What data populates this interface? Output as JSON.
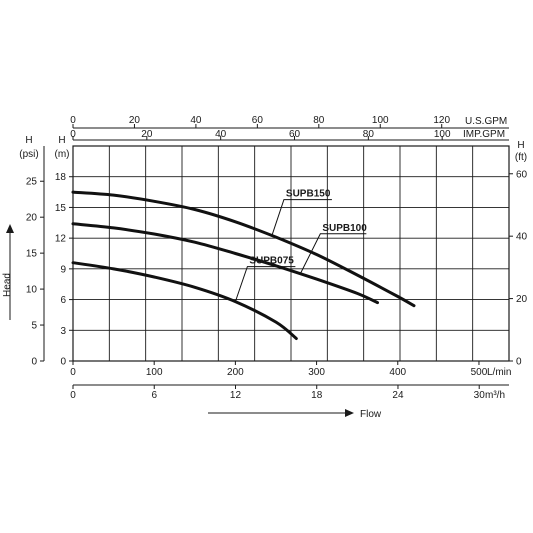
{
  "chart_data": {
    "type": "line",
    "grid": true,
    "axes": {
      "flow_lmin": {
        "unit": "L/min",
        "ticks": [
          0,
          100,
          200,
          300,
          400,
          500
        ],
        "range": [
          0,
          537
        ]
      },
      "flow_m3h": {
        "unit": "m³/h",
        "ticks": [
          0,
          6,
          12,
          18,
          24,
          30
        ],
        "range": [
          0,
          32.2
        ]
      },
      "flow_usgpm": {
        "unit": "U.S.GPM",
        "ticks": [
          0,
          20,
          40,
          60,
          80,
          100,
          120
        ],
        "range": [
          0,
          141.9
        ]
      },
      "flow_impgpm": {
        "unit": "IMP.GPM",
        "ticks": [
          0,
          20,
          40,
          60,
          80,
          100
        ],
        "range": [
          0,
          118.1
        ]
      },
      "head_m": {
        "title": "H",
        "unit": "(m)",
        "ticks": [
          0,
          3,
          6,
          9,
          12,
          15,
          18
        ],
        "range": [
          0,
          21
        ]
      },
      "head_psi": {
        "title": "H",
        "unit": "(psi)",
        "ticks": [
          0,
          5,
          10,
          15,
          20,
          25
        ],
        "range": [
          0,
          29.9
        ]
      },
      "head_ft": {
        "title": "H",
        "unit": "(ft)",
        "ticks": [
          0,
          20,
          40,
          60
        ],
        "range": [
          0,
          68.9
        ]
      }
    },
    "head_label": "Head",
    "flow_label": "Flow",
    "series": [
      {
        "name": "SUPB150",
        "x": [
          0,
          50,
          100,
          150,
          200,
          250,
          300,
          350,
          400,
          420
        ],
        "y": [
          16.5,
          16.2,
          15.6,
          14.8,
          13.6,
          12.1,
          10.4,
          8.4,
          6.3,
          5.4
        ]
      },
      {
        "name": "SUPB100",
        "x": [
          0,
          50,
          100,
          150,
          200,
          250,
          300,
          350,
          375
        ],
        "y": [
          13.4,
          13.0,
          12.4,
          11.6,
          10.5,
          9.3,
          8.0,
          6.6,
          5.7
        ]
      },
      {
        "name": "SUPB075",
        "x": [
          0,
          50,
          100,
          150,
          200,
          250,
          275
        ],
        "y": [
          9.6,
          9.0,
          8.2,
          7.2,
          5.8,
          3.8,
          2.2
        ]
      }
    ]
  }
}
